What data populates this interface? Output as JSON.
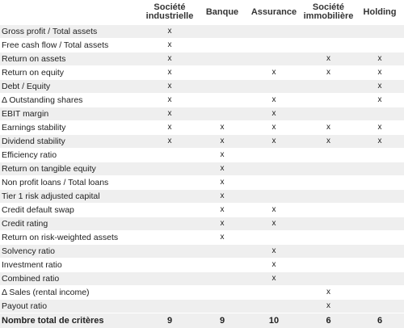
{
  "columns": [
    "Société industrielle",
    "Banque",
    "Assurance",
    "Société immobilière",
    "Holding"
  ],
  "columns_lines": [
    [
      "Société",
      "industrielle"
    ],
    [
      "Banque"
    ],
    [
      "Assurance"
    ],
    [
      "Société",
      "immobilière"
    ],
    [
      "Holding"
    ]
  ],
  "mark_symbol": "x",
  "rows": [
    {
      "label": "Gross profit / Total assets",
      "marks": [
        true,
        false,
        false,
        false,
        false
      ]
    },
    {
      "label": "Free cash flow / Total assets",
      "marks": [
        true,
        false,
        false,
        false,
        false
      ]
    },
    {
      "label": "Return on assets",
      "marks": [
        true,
        false,
        false,
        true,
        true
      ]
    },
    {
      "label": "Return on equity",
      "marks": [
        true,
        false,
        true,
        true,
        true
      ]
    },
    {
      "label": "Debt / Equity",
      "marks": [
        true,
        false,
        false,
        false,
        true
      ]
    },
    {
      "label": "Δ Outstanding shares",
      "marks": [
        true,
        false,
        true,
        false,
        true
      ]
    },
    {
      "label": "EBIT margin",
      "marks": [
        true,
        false,
        true,
        false,
        false
      ]
    },
    {
      "label": "Earnings stability",
      "marks": [
        true,
        true,
        true,
        true,
        true
      ]
    },
    {
      "label": "Dividend stability",
      "marks": [
        true,
        true,
        true,
        true,
        true
      ]
    },
    {
      "label": "Efficiency ratio",
      "marks": [
        false,
        true,
        false,
        false,
        false
      ]
    },
    {
      "label": "Return on tangible equity",
      "marks": [
        false,
        true,
        false,
        false,
        false
      ]
    },
    {
      "label": "Non profit loans / Total loans",
      "marks": [
        false,
        true,
        false,
        false,
        false
      ]
    },
    {
      "label": "Tier 1 risk adjusted capital",
      "marks": [
        false,
        true,
        false,
        false,
        false
      ]
    },
    {
      "label": "Credit default swap",
      "marks": [
        false,
        true,
        true,
        false,
        false
      ]
    },
    {
      "label": "Credit rating",
      "marks": [
        false,
        true,
        true,
        false,
        false
      ]
    },
    {
      "label": "Return on risk-weighted assets",
      "marks": [
        false,
        true,
        false,
        false,
        false
      ]
    },
    {
      "label": "Solvency ratio",
      "marks": [
        false,
        false,
        true,
        false,
        false
      ]
    },
    {
      "label": "Investment ratio",
      "marks": [
        false,
        false,
        true,
        false,
        false
      ]
    },
    {
      "label": "Combined ratio",
      "marks": [
        false,
        false,
        true,
        false,
        false
      ]
    },
    {
      "label": "Δ Sales (rental income)",
      "marks": [
        false,
        false,
        false,
        true,
        false
      ]
    },
    {
      "label": "Payout ratio",
      "marks": [
        false,
        false,
        false,
        true,
        false
      ]
    }
  ],
  "totals": {
    "label": "Nombre total de critères",
    "values": [
      "9",
      "9",
      "10",
      "6",
      "6"
    ]
  }
}
